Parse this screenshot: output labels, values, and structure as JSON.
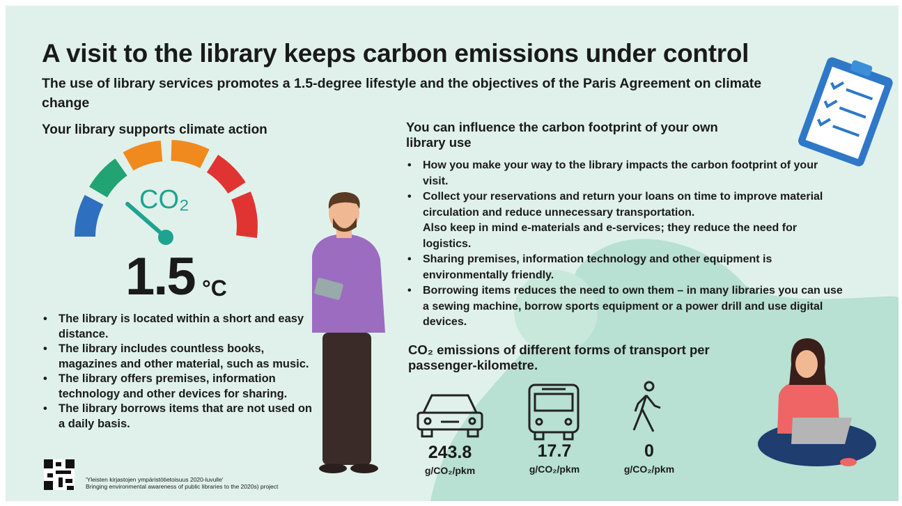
{
  "header": {
    "title": "A visit to the library keeps carbon emissions under control",
    "subtitle": "The use of library services promotes a 1.5-degree lifestyle and the objectives of the Paris Agreement on climate change"
  },
  "left": {
    "heading": "Your library supports climate action",
    "gauge_label": "CO₂",
    "temperature": {
      "value": "1.5",
      "unit": "°C"
    },
    "bullets": [
      "The library is located within a short and easy distance.",
      "The library includes countless books, magazines and other material, such as music.",
      "The library offers premises, information technology and other devices for sharing.",
      "The library borrows items that are not used on a daily basis."
    ]
  },
  "right": {
    "heading": "You can influence the carbon footprint of your own library use",
    "bullets": [
      "How you make your way to the library impacts the carbon footprint of your visit.",
      "Collect your reservations and return your loans on time to improve material circulation and reduce unnecessary transportation.",
      "Sharing premises, information technology and other equipment is environmentally friendly.",
      "Borrowing items reduces the need to own them – in many libraries you can use a sewing machine, borrow sports equipment or a power drill and use digital devices."
    ],
    "bullet_note": "Also keep in mind e-materials and e-services; they reduce the need for logistics."
  },
  "transport": {
    "heading": "CO₂ emissions of different forms of transport per passenger-kilometre.",
    "items": [
      {
        "value": "243.8",
        "unit": "g/CO₂/pkm"
      },
      {
        "value": "17.7",
        "unit": "g/CO₂/pkm"
      },
      {
        "value": "0",
        "unit": "g/CO₂/pkm"
      }
    ]
  },
  "footer": {
    "lines": [
      "'Yleisten kirjastojen ympäristötietoisuus 2020-luvulle'",
      "Bringing environmental awareness of public libraries to the 2020s) project"
    ]
  }
}
